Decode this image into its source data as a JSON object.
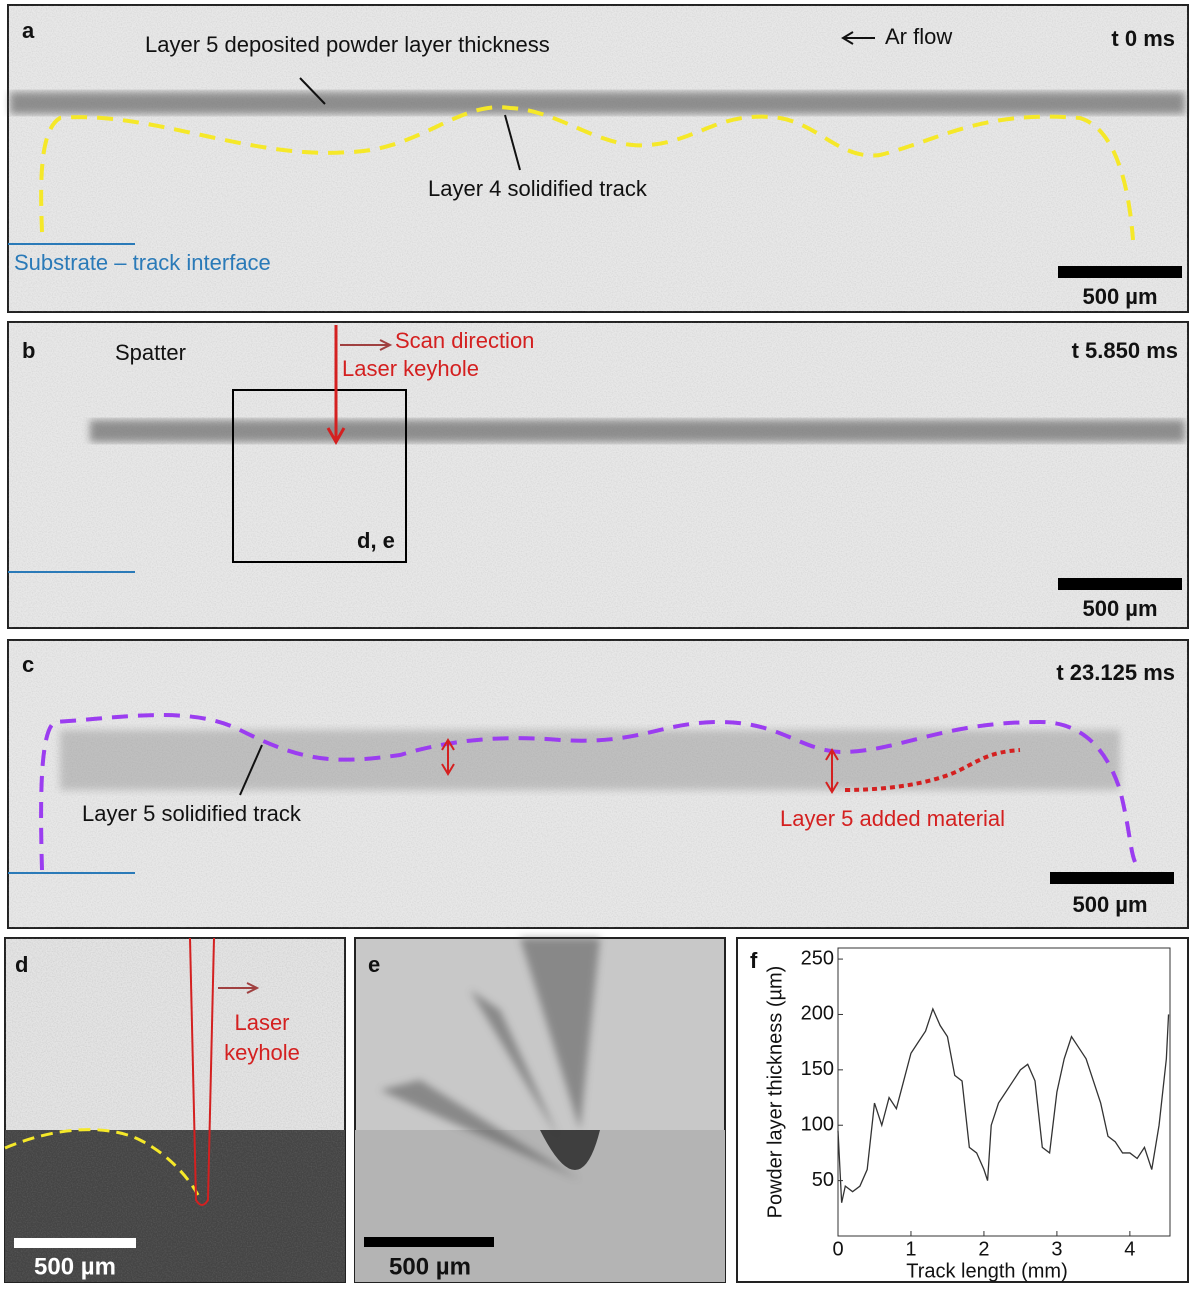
{
  "panels": {
    "a": {
      "label": "a",
      "time": "t 0 ms",
      "powder_note": "Layer 5 deposited powder layer thickness",
      "flow": "Ar flow",
      "track_note": "Layer 4 solidified track",
      "interface": "Substrate – track interface",
      "scale": "500 µm"
    },
    "b": {
      "label": "b",
      "time": "t 5.850 ms",
      "spatter": "Spatter",
      "scan": "Scan direction",
      "keyhole": "Laser keyhole",
      "inset": "d, e",
      "scale": "500 µm"
    },
    "c": {
      "label": "c",
      "time": "t 23.125 ms",
      "track_note": "Layer 5 solidified track",
      "added": "Layer 5 added material",
      "scale": "500 µm"
    },
    "d": {
      "label": "d",
      "keyhole": "Laser",
      "keyhole2": "keyhole",
      "scale": "500 µm"
    },
    "e": {
      "label": "e",
      "scale": "500 µm"
    }
  },
  "chart_data": {
    "type": "line",
    "label": "f",
    "x_label": "Track length (mm)",
    "y_label": "Powder layer thickness (µm)",
    "x": [
      0,
      0.05,
      0.1,
      0.2,
      0.3,
      0.4,
      0.5,
      0.6,
      0.7,
      0.8,
      0.9,
      1.0,
      1.1,
      1.2,
      1.3,
      1.4,
      1.5,
      1.6,
      1.7,
      1.8,
      1.9,
      2.0,
      2.05,
      2.1,
      2.2,
      2.3,
      2.4,
      2.5,
      2.6,
      2.7,
      2.8,
      2.9,
      3.0,
      3.1,
      3.2,
      3.3,
      3.4,
      3.5,
      3.6,
      3.7,
      3.8,
      3.9,
      4.0,
      4.1,
      4.2,
      4.3,
      4.4,
      4.5,
      4.53
    ],
    "values": [
      95,
      30,
      45,
      40,
      45,
      60,
      120,
      100,
      125,
      115,
      140,
      165,
      175,
      185,
      205,
      190,
      180,
      145,
      140,
      80,
      75,
      60,
      50,
      100,
      120,
      130,
      140,
      150,
      155,
      140,
      80,
      75,
      130,
      160,
      180,
      170,
      160,
      140,
      120,
      90,
      85,
      75,
      75,
      70,
      80,
      60,
      100,
      160,
      200
    ],
    "color": "#333333",
    "xlim": [
      0,
      4.55
    ],
    "ylim": [
      0,
      260
    ],
    "xticks": [
      0,
      1,
      2,
      3,
      4
    ],
    "yticks": [
      50,
      100,
      150,
      200,
      250
    ]
  }
}
